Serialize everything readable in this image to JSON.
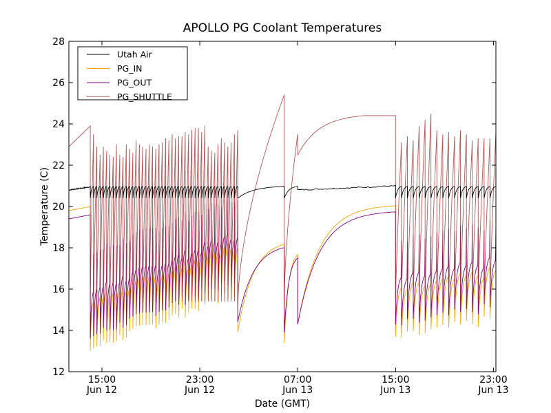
{
  "chart_data": {
    "type": "line",
    "title": "APOLLO PG Coolant Temperatures",
    "xlabel": "Date (GMT)",
    "ylabel": "Temperature (C)",
    "ylim": [
      12,
      28
    ],
    "xlim_hours": [
      -2.7,
      32.2
    ],
    "x_unit_note": "hours relative to Jun 12 15:00 GMT",
    "yticks": [
      12,
      14,
      16,
      18,
      20,
      22,
      24,
      26,
      28
    ],
    "xticks": [
      {
        "hours": 0,
        "line1": "15:00",
        "line2": "Jun 12"
      },
      {
        "hours": 8,
        "line1": "23:00",
        "line2": "Jun 12"
      },
      {
        "hours": 16,
        "line1": "07:00",
        "line2": "Jun 13"
      },
      {
        "hours": 24,
        "line1": "15:00",
        "line2": "Jun 13"
      },
      {
        "hours": 32,
        "line1": "23:00",
        "line2": "Jun 13"
      }
    ],
    "grid": false,
    "legend_position": "top-left",
    "series": [
      {
        "name": "Utah Air",
        "color": "#000000"
      },
      {
        "name": "PG_IN",
        "color": "#ffa500"
      },
      {
        "name": "PG_OUT",
        "color": "#800080"
      },
      {
        "name": "PG_SHUTTLE",
        "color": "#a52a2a"
      }
    ],
    "segments": [
      {
        "kind": "drift",
        "t0": -2.7,
        "t1": -0.95,
        "utah": [
          20.8,
          20.95
        ],
        "pg_in": [
          19.8,
          20.0
        ],
        "pg_out": [
          19.4,
          19.6
        ],
        "shuttle": [
          22.9,
          23.9
        ]
      },
      {
        "kind": "cycling",
        "t0": -0.95,
        "t1": 11.1,
        "cycle_peaks_shuttle": [
          23.5,
          22.9,
          22.5,
          22.9,
          22.7,
          22.5,
          22.4,
          23.0,
          22.5,
          22.4,
          23.0,
          22.8,
          22.6,
          23.2,
          23.0,
          22.9,
          22.8,
          23.0,
          22.9,
          22.8,
          23.0,
          23.1,
          23.3,
          23.2,
          23.5,
          23.3,
          23.4,
          23.4,
          23.6,
          23.5,
          23.7,
          23.8,
          23.8,
          23.6,
          23.9,
          22.9,
          22.7,
          22.6,
          23.0,
          23.3,
          23.1,
          22.9,
          23.1,
          23.5,
          23.7
        ],
        "pg_in_minima_range": [
          12.3,
          15.8
        ],
        "pg_out_peaks_range": [
          17.0,
          19.5
        ],
        "utah_range": [
          20.4,
          21.0
        ]
      },
      {
        "kind": "long_cycle",
        "t0": 11.1,
        "t1": 14.9,
        "shuttle_peak": 25.4,
        "pg_in_min": 13.9,
        "utah_dip": 20.4
      },
      {
        "kind": "long_cycle",
        "t0": 14.9,
        "t1": 16.0,
        "shuttle_peak": 23.5,
        "pg_in_min": 13.4
      },
      {
        "kind": "recovery",
        "t0": 16.0,
        "t1": 24.0,
        "utah": [
          20.8,
          21.0
        ],
        "pg_in": [
          14.3,
          20.1
        ],
        "pg_out": [
          14.3,
          19.8
        ],
        "shuttle": [
          22.5,
          24.4
        ]
      },
      {
        "kind": "cycling",
        "t0": 24.0,
        "t1": 32.2,
        "cycle_peaks_shuttle": [
          23.1,
          23.4,
          23.2,
          23.9,
          24.2,
          24.5,
          23.7,
          23.5,
          23.6,
          23.4,
          23.7,
          23.5,
          23.2,
          23.3,
          23.3,
          23.3,
          23.6
        ],
        "pg_in_minima_range": [
          12.8,
          14.5
        ],
        "utah_range": [
          20.4,
          21.0
        ]
      }
    ]
  }
}
